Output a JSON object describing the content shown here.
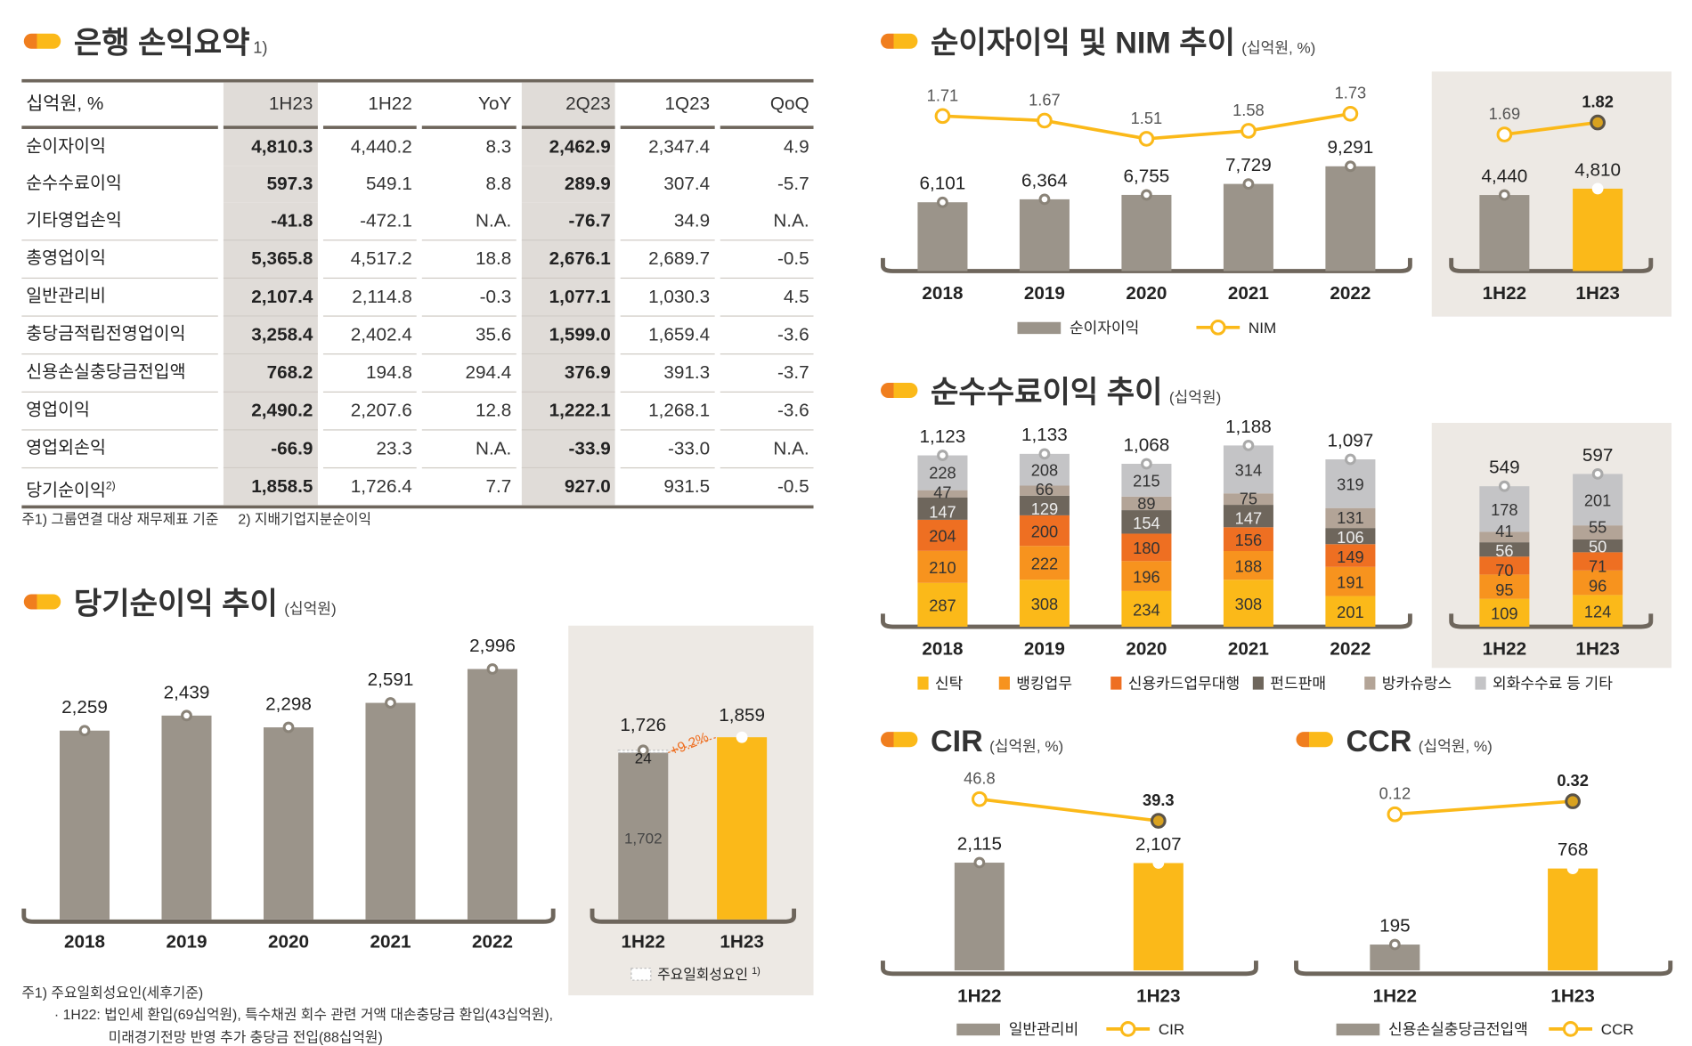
{
  "colors": {
    "bar_gray": "#9B948A",
    "bar_yellow": "#FBB919",
    "line": "#FBB919",
    "bracket": "#6E665C",
    "panel": "#EDE9E4",
    "growth": "#EE6F22",
    "fee": [
      "#FBB919",
      "#F7931E",
      "#EE6F22",
      "#6E665C",
      "#B3A497",
      "#C4C4C6"
    ]
  },
  "summary": {
    "title": "은행 손익요약",
    "title_note": "1)",
    "headers": [
      "십억원, %",
      "1H23",
      "1H22",
      "YoY",
      "2Q23",
      "1Q23",
      "QoQ"
    ],
    "rows": [
      {
        "label": "순이자이익",
        "values": [
          "4,810.3",
          "4,440.2",
          "8.3",
          "2,462.9",
          "2,347.4",
          "4.9"
        ]
      },
      {
        "label": "순수수료이익",
        "values": [
          "597.3",
          "549.1",
          "8.8",
          "289.9",
          "307.4",
          "-5.7"
        ]
      },
      {
        "label": "기타영업손익",
        "values": [
          "-41.8",
          "-472.1",
          "N.A.",
          "-76.7",
          "34.9",
          "N.A."
        ]
      },
      {
        "label": "총영업이익",
        "values": [
          "5,365.8",
          "4,517.2",
          "18.8",
          "2,676.1",
          "2,689.7",
          "-0.5"
        ]
      },
      {
        "label": "일반관리비",
        "values": [
          "2,107.4",
          "2,114.8",
          "-0.3",
          "1,077.1",
          "1,030.3",
          "4.5"
        ]
      },
      {
        "label": "충당금적립전영업이익",
        "values": [
          "3,258.4",
          "2,402.4",
          "35.6",
          "1,599.0",
          "1,659.4",
          "-3.6"
        ]
      },
      {
        "label": "신용손실충당금전입액",
        "values": [
          "768.2",
          "194.8",
          "294.4",
          "376.9",
          "391.3",
          "-3.7"
        ]
      },
      {
        "label": "영업이익",
        "values": [
          "2,490.2",
          "2,207.6",
          "12.8",
          "1,222.1",
          "1,268.1",
          "-3.6"
        ]
      },
      {
        "label": "영업외손익",
        "values": [
          "-66.9",
          "23.3",
          "N.A.",
          "-33.9",
          "-33.0",
          "N.A."
        ]
      },
      {
        "label": "당기순이익",
        "label_note": "2)",
        "values": [
          "1,858.5",
          "1,726.4",
          "7.7",
          "927.0",
          "931.5",
          "-0.5"
        ]
      }
    ],
    "footnote": "주1) 그룹연결 대상 재무제표 기준     2) 지배기업지분순이익"
  },
  "net_income": {
    "title": "당기순이익 추이",
    "unit": "(십억원)",
    "footnote1": "주1) 주요일회성요인(세후기준)",
    "footnote2": "· 1H22: 법인세 환입(69십억원), 특수채권 회수 관련 거액 대손충당금 환입(43십억원),",
    "footnote3": "미래경기전망 반영 추가 충당금 전입(88십억원)"
  },
  "nii": {
    "title": "순이자이익 및 NIM 추이",
    "unit": "(십억원, %)"
  },
  "fee": {
    "title": "순수수료이익 추이",
    "unit": "(십억원)"
  },
  "cir": {
    "title": "CIR",
    "unit": "(십억원, %)"
  },
  "ccr": {
    "title": "CCR",
    "unit": "(십억원, %)"
  },
  "chart_data": [
    {
      "id": "net_income_annual",
      "type": "bar",
      "categories": [
        "2018",
        "2019",
        "2020",
        "2021",
        "2022"
      ],
      "values": [
        2259,
        2439,
        2298,
        2591,
        2996
      ],
      "labels": [
        "2,259",
        "2,439",
        "2,298",
        "2,591",
        "2,996"
      ]
    },
    {
      "id": "net_income_half",
      "type": "bar",
      "categories": [
        "1H22",
        "1H23"
      ],
      "values": [
        1726,
        1859
      ],
      "labels": [
        "1,726",
        "1,859"
      ],
      "one_off": {
        "category": "1H22",
        "value": 24,
        "label": "24",
        "base": 1702,
        "base_label": "1,702"
      },
      "growth_label": "+9.2%",
      "legend": [
        "주요일회성요인",
        "1)"
      ]
    },
    {
      "id": "nii_annual",
      "type": "bar+line",
      "categories": [
        "2018",
        "2019",
        "2020",
        "2021",
        "2022"
      ],
      "series": [
        {
          "name": "순이자이익",
          "values": [
            6101,
            6364,
            6755,
            7729,
            9291
          ],
          "labels": [
            "6,101",
            "6,364",
            "6,755",
            "7,729",
            "9,291"
          ]
        },
        {
          "name": "NIM",
          "values": [
            1.71,
            1.67,
            1.51,
            1.58,
            1.73
          ],
          "labels": [
            "1.71",
            "1.67",
            "1.51",
            "1.58",
            "1.73"
          ]
        }
      ]
    },
    {
      "id": "nii_half",
      "type": "bar+line",
      "categories": [
        "1H22",
        "1H23"
      ],
      "series": [
        {
          "name": "순이자이익",
          "values": [
            4440,
            4810
          ],
          "labels": [
            "4,440",
            "4,810"
          ]
        },
        {
          "name": "NIM",
          "values": [
            1.69,
            1.82
          ],
          "labels": [
            "1.69",
            "1.82"
          ]
        }
      ]
    },
    {
      "id": "fee_annual",
      "type": "stacked-bar",
      "categories": [
        "2018",
        "2019",
        "2020",
        "2021",
        "2022"
      ],
      "totals": [
        1123,
        1133,
        1068,
        1188,
        1097
      ],
      "total_labels": [
        "1,123",
        "1,133",
        "1,068",
        "1,188",
        "1,097"
      ],
      "series": [
        {
          "name": "신탁",
          "values": [
            287,
            308,
            234,
            308,
            201
          ]
        },
        {
          "name": "뱅킹업무",
          "values": [
            210,
            222,
            196,
            188,
            191
          ]
        },
        {
          "name": "신용카드업무대행",
          "values": [
            204,
            200,
            180,
            156,
            149
          ]
        },
        {
          "name": "펀드판매",
          "values": [
            147,
            129,
            154,
            147,
            106
          ]
        },
        {
          "name": "방카슈랑스",
          "values": [
            47,
            66,
            89,
            75,
            131
          ]
        },
        {
          "name": "외화수수료 등 기타",
          "values": [
            228,
            208,
            215,
            314,
            319
          ]
        }
      ]
    },
    {
      "id": "fee_half",
      "type": "stacked-bar",
      "categories": [
        "1H22",
        "1H23"
      ],
      "totals": [
        549,
        597
      ],
      "total_labels": [
        "549",
        "597"
      ],
      "series": [
        {
          "name": "신탁",
          "values": [
            109,
            124
          ]
        },
        {
          "name": "뱅킹업무",
          "values": [
            95,
            96
          ]
        },
        {
          "name": "신용카드업무대행",
          "values": [
            70,
            71
          ]
        },
        {
          "name": "펀드판매",
          "values": [
            56,
            50
          ]
        },
        {
          "name": "방카슈랑스",
          "values": [
            41,
            55
          ]
        },
        {
          "name": "외화수수료 등 기타",
          "values": [
            178,
            201
          ]
        }
      ]
    },
    {
      "id": "cir",
      "type": "bar+line",
      "categories": [
        "1H22",
        "1H23"
      ],
      "series": [
        {
          "name": "일반관리비",
          "values": [
            2115,
            2107
          ],
          "labels": [
            "2,115",
            "2,107"
          ]
        },
        {
          "name": "CIR",
          "values": [
            46.8,
            39.3
          ],
          "labels": [
            "46.8",
            "39.3"
          ]
        }
      ]
    },
    {
      "id": "ccr",
      "type": "bar+line",
      "categories": [
        "1H22",
        "1H23"
      ],
      "series": [
        {
          "name": "신용손실충당금전입액",
          "values": [
            195,
            768
          ],
          "labels": [
            "195",
            "768"
          ]
        },
        {
          "name": "CCR",
          "values": [
            0.12,
            0.32
          ],
          "labels": [
            "0.12",
            "0.32"
          ]
        }
      ]
    }
  ]
}
